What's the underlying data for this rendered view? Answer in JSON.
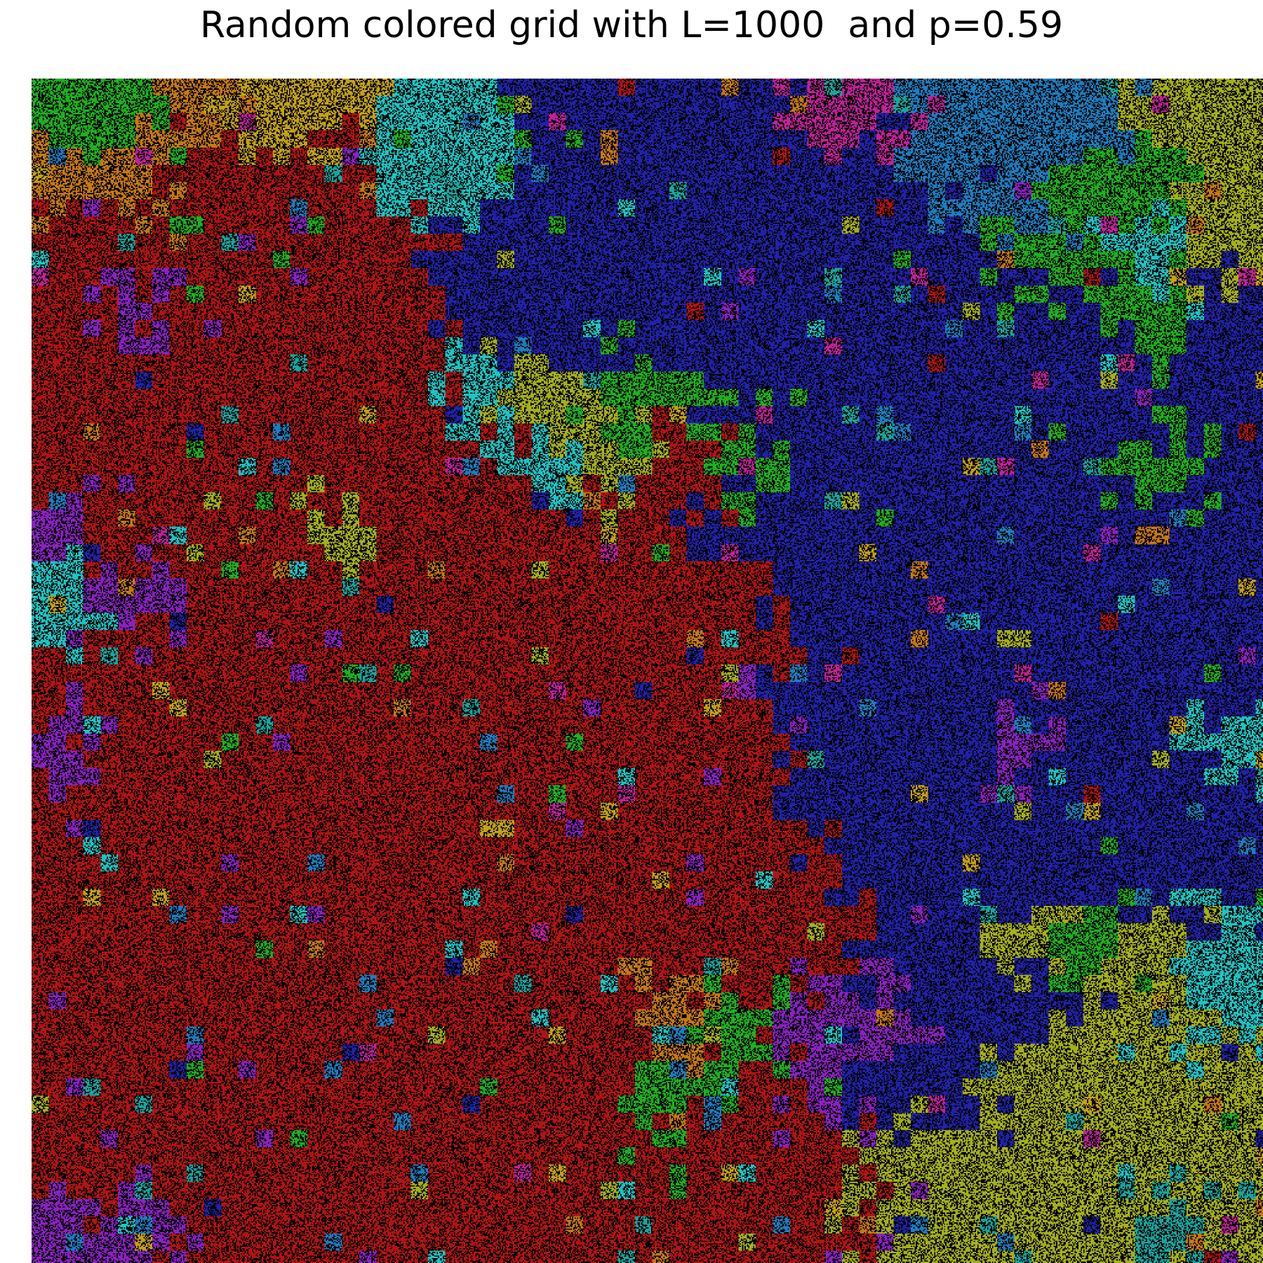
{
  "title": "Random colored grid with L=1000  and p=0.59",
  "chart_data": {
    "type": "heatmap",
    "title": "Random colored grid with L=1000  and p=0.59",
    "L": 1000,
    "p": 0.59,
    "empty_color": "#000000",
    "colors": {
      "red": "#b01515",
      "blue": "#2222a8",
      "cyan": "#1ec4c4",
      "green": "#1fb01f",
      "yellow_green": "#a6b01a",
      "orange": "#c77a12",
      "purple": "#8a22c0",
      "magenta": "#c0229a",
      "teal": "#19a6a0",
      "sky": "#1d7ec0",
      "gold": "#c4a214"
    },
    "grid": {
      "rows": 17,
      "cols": 18,
      "cells": [
        "GGOWWCCBBBBMMSSSYY",
        "OORRRCCBBBBBBSSGGY",
        "RRRRRRBBBBBBBBGGCY",
        "RPRRRRBBBBBBBBBBGB",
        "RRRRRRCYGGBBBBBBBB",
        "RRRRRRRCYRGBBBBBGB",
        "PRRRYRRRRRBBBBBBBB",
        "CPRRRRRRRRRBBBBBBB",
        "RRRRRRRRRRRBBBBBBB",
        "PRRRRRRRRRRBBBPBBC",
        "RRRRRRRRRRRBBBBBBB",
        "RRRRRRRRRRRRBBBBBB",
        "RRRRRRRRRRRRBBYGYC",
        "RRRRRRRRROGPPBBYYC",
        "RRRRRRRRRGRPBBYYYY",
        "RRRRRRRRRRRRYYYYYY",
        "PPRRRRRRRRRRYYYYTY"
      ],
      "legend": {
        "R": "red",
        "B": "blue",
        "C": "cyan",
        "G": "green",
        "Y": "yellow_green",
        "O": "orange",
        "P": "purple",
        "M": "magenta",
        "T": "teal",
        "S": "sky",
        "W": "gold"
      }
    }
  }
}
